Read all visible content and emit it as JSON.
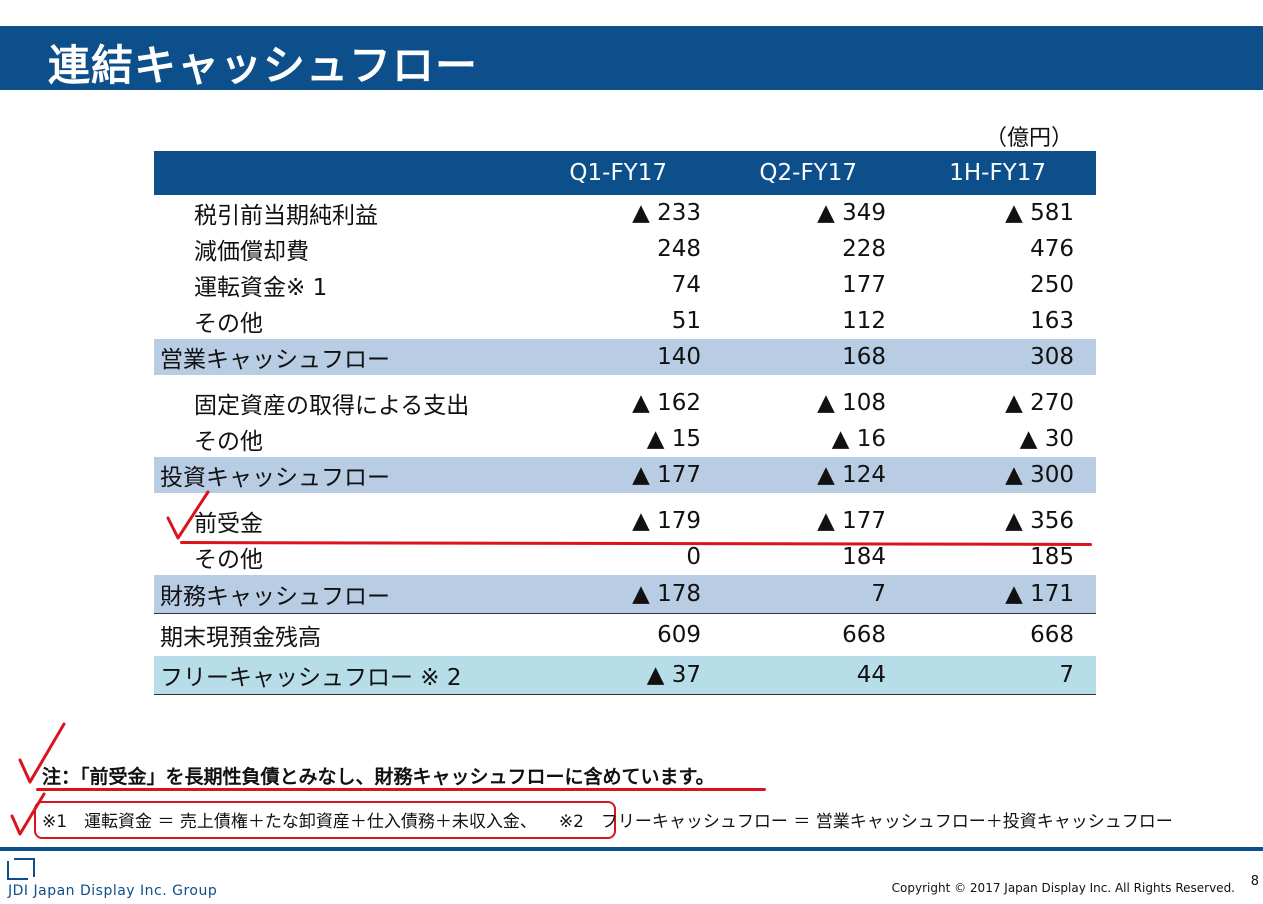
{
  "title": "連結キャッシュフロー",
  "unit": "（億円）",
  "columns": [
    "Q1-FY17",
    "Q2-FY17",
    "1H-FY17"
  ],
  "rows": [
    {
      "label": "税引前当期純利益",
      "values": [
        "▲ 233",
        "▲ 349",
        "▲ 581"
      ],
      "style": "item"
    },
    {
      "label": "減価償却費",
      "values": [
        "248",
        "228",
        "476"
      ],
      "style": "item"
    },
    {
      "label": "運転資金※ 1",
      "values": [
        "74",
        "177",
        "250"
      ],
      "style": "item"
    },
    {
      "label": "その他",
      "values": [
        "51",
        "112",
        "163"
      ],
      "style": "item"
    },
    {
      "label": "営業キャッシュフロー",
      "values": [
        "140",
        "168",
        "308"
      ],
      "style": "sub-total"
    },
    {
      "label": "固定資産の取得による支出",
      "values": [
        "▲ 162",
        "▲ 108",
        "▲ 270"
      ],
      "style": "item"
    },
    {
      "label": "その他",
      "values": [
        "▲ 15",
        "▲ 16",
        "▲ 30"
      ],
      "style": "item"
    },
    {
      "label": "投資キャッシュフロー",
      "values": [
        "▲ 177",
        "▲ 124",
        "▲ 300"
      ],
      "style": "sub-total"
    },
    {
      "label": "前受金",
      "values": [
        "▲ 179",
        "▲ 177",
        "▲ 356"
      ],
      "style": "item"
    },
    {
      "label": "その他",
      "values": [
        "0",
        "184",
        "185"
      ],
      "style": "item"
    },
    {
      "label": "財務キャッシュフロー",
      "values": [
        "▲ 178",
        "7",
        "▲ 171"
      ],
      "style": "sub-total"
    },
    {
      "label": "期末現預金残高",
      "values": [
        "609",
        "668",
        "668"
      ],
      "style": "balance"
    },
    {
      "label": "フリーキャッシュフロー ※ 2",
      "values": [
        "▲ 37",
        "44",
        "7"
      ],
      "style": "free-cf"
    }
  ],
  "note1": "注：「前受金」を長期性負債とみなし、財務キャッシュフローに含めています。",
  "note2a": "※1　運転資金 ＝ 売上債権＋たな卸資産＋仕入債務＋未収入金、",
  "note2b": "※2　フリーキャッシュフロー ＝ 営業キャッシュフロー＋投資キャッシュフロー",
  "footer": {
    "logo_text": "JDI Japan Display Inc. Group",
    "copyright": "Copyright © 2017 Japan Display Inc.   All Rights Reserved.",
    "page_number": "8"
  },
  "colors": {
    "header": "#0d4f8b",
    "subtotal": "#b8cce4",
    "free_cf": "#b7dde8",
    "annotation": "#d9141d"
  },
  "icons": [
    "check-mark-icon",
    "jdi-logo-icon"
  ]
}
